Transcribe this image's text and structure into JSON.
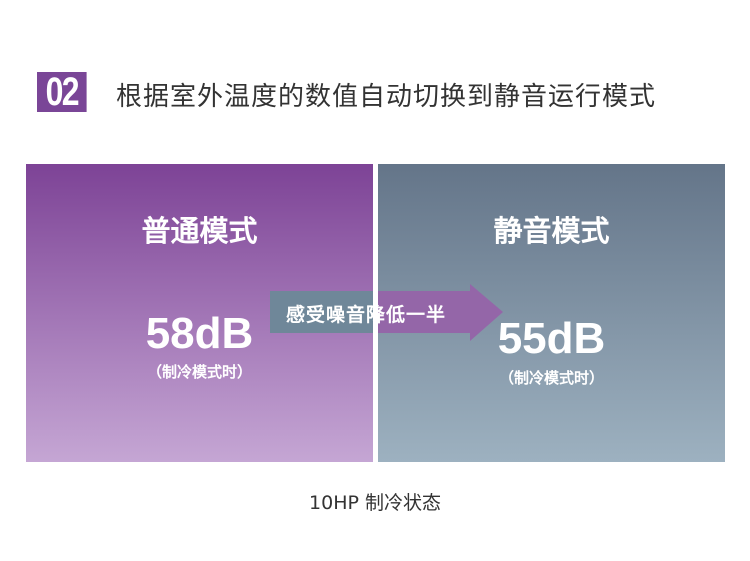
{
  "header": {
    "number": "02",
    "title": "根据室外温度的数值自动切换到静音运行模式"
  },
  "colors": {
    "accent": "#7a4697",
    "left_panel": "#7d4396",
    "right_panel": "#647589"
  },
  "left": {
    "mode": "普通模式",
    "value": "58dB",
    "note": "（制冷模式时）"
  },
  "right": {
    "mode": "静音模式",
    "value": "55dB",
    "note": "（制冷模式时）"
  },
  "arrow": {
    "label": "感受噪音降低一半"
  },
  "footer": "10HP  制冷状态"
}
